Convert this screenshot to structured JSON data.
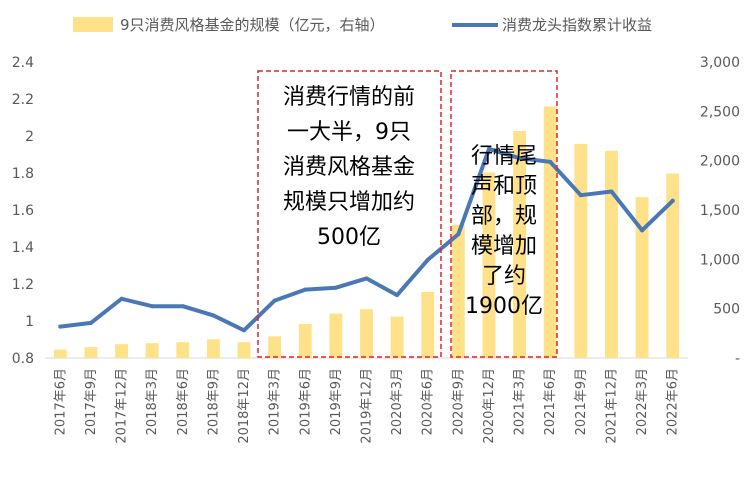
{
  "chart_data": {
    "type": "bar+line",
    "categories": [
      "2017年6月",
      "2017年9月",
      "2017年12月",
      "2018年3月",
      "2018年6月",
      "2018年9月",
      "2018年12月",
      "2019年3月",
      "2019年6月",
      "2019年9月",
      "2019年12月",
      "2020年3月",
      "2020年6月",
      "2020年9月",
      "2020年12月",
      "2021年3月",
      "2021年6月",
      "2021年9月",
      "2021年12月",
      "2022年3月",
      "2022年6月"
    ],
    "series": [
      {
        "name": "9只消费风格基金的规模（亿元，右轴）",
        "kind": "bar",
        "axis": "right",
        "color": "#FFE18A",
        "values": [
          85,
          110,
          140,
          150,
          160,
          190,
          160,
          220,
          345,
          450,
          495,
          420,
          670,
          1350,
          1880,
          2300,
          2550,
          2170,
          2100,
          1630,
          1870
        ]
      },
      {
        "name": "消费龙头指数累计收益",
        "kind": "line",
        "axis": "left",
        "color": "#4A78B5",
        "values": [
          0.97,
          0.99,
          1.12,
          1.08,
          1.08,
          1.03,
          0.95,
          1.11,
          1.17,
          1.18,
          1.23,
          1.14,
          1.33,
          1.47,
          1.93,
          1.88,
          1.86,
          1.68,
          1.7,
          1.49,
          1.65
        ]
      }
    ],
    "left_axis": {
      "ylim": [
        0.8,
        2.4
      ],
      "ticks": [
        "0.8",
        "1",
        "1.2",
        "1.4",
        "1.6",
        "1.8",
        "2",
        "2.2",
        "2.4"
      ]
    },
    "right_axis": {
      "ylim": [
        0,
        3000
      ],
      "ticks": [
        "-",
        "500",
        "1,000",
        "1,500",
        "2,000",
        "2,500",
        "3,000"
      ]
    },
    "legend_position": "top",
    "grid": false,
    "annotations": [
      {
        "lines": [
          "消费行情的前",
          "一大半，9只",
          "消费风格基金",
          "规模只增加约",
          "500亿"
        ],
        "box_color": "#E0262A"
      },
      {
        "lines": [
          "行情尾",
          "声和顶",
          "部，规",
          "模增加",
          "了约",
          "1900亿"
        ],
        "box_color": "#E0262A"
      }
    ]
  }
}
